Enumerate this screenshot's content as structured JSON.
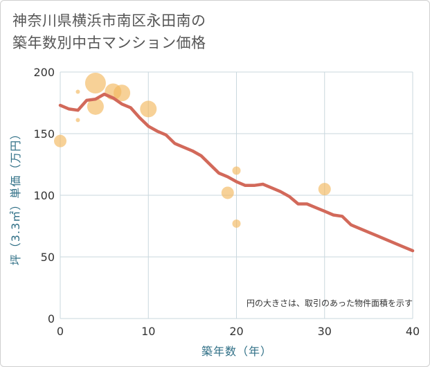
{
  "title": {
    "line1": "神奈川県横浜市南区永田南の",
    "line2": "築年数別中古マンション価格"
  },
  "chart_data": {
    "type": "scatter+line",
    "xlabel": "築年数（年）",
    "ylabel": "坪（3.3㎡）単価（万円）",
    "xlim": [
      0,
      40
    ],
    "ylim": [
      0,
      200
    ],
    "xticks": [
      0,
      10,
      20,
      30,
      40
    ],
    "yticks": [
      0,
      50,
      100,
      150,
      200
    ],
    "grid": true,
    "note": "円の大きさは、取引のあった物件面積を示す",
    "colors": {
      "points": "#f3b95f",
      "trend": "#d2695a",
      "grid": "#c9d7de"
    },
    "points": [
      {
        "x": 0,
        "y": 144,
        "size": 3
      },
      {
        "x": 2,
        "y": 184,
        "size": 1
      },
      {
        "x": 2,
        "y": 161,
        "size": 1
      },
      {
        "x": 4,
        "y": 191,
        "size": 5
      },
      {
        "x": 4,
        "y": 172,
        "size": 4
      },
      {
        "x": 6,
        "y": 184,
        "size": 4
      },
      {
        "x": 7,
        "y": 183,
        "size": 4
      },
      {
        "x": 10,
        "y": 170,
        "size": 4
      },
      {
        "x": 19,
        "y": 102,
        "size": 3
      },
      {
        "x": 20,
        "y": 120,
        "size": 2
      },
      {
        "x": 20,
        "y": 77,
        "size": 2
      },
      {
        "x": 30,
        "y": 105,
        "size": 3
      }
    ],
    "trend": {
      "x": [
        0,
        1,
        2,
        3,
        4,
        5,
        6,
        7,
        8,
        9,
        10,
        11,
        12,
        13,
        14,
        15,
        16,
        17,
        18,
        19,
        20,
        21,
        22,
        23,
        24,
        25,
        26,
        27,
        28,
        29,
        30,
        31,
        32,
        33,
        34,
        35,
        36,
        37,
        38,
        39,
        40
      ],
      "y": [
        173,
        170,
        169,
        177,
        178,
        182,
        179,
        174,
        171,
        163,
        156,
        152,
        149,
        142,
        139,
        136,
        132,
        125,
        118,
        115,
        111,
        108,
        108,
        109,
        106,
        103,
        99,
        93,
        93,
        90,
        87,
        84,
        83,
        76,
        73,
        70,
        67,
        64,
        61,
        58,
        55
      ]
    }
  }
}
